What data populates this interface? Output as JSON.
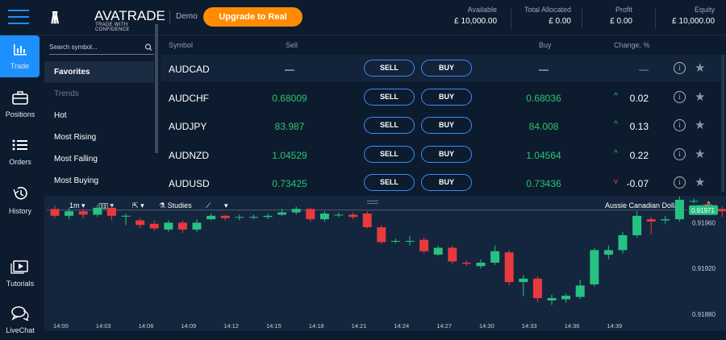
{
  "brand": {
    "name": "AVATRADE",
    "tagline": "TRADE WITH CONFIDENCE",
    "mode": "Demo"
  },
  "upgrade_label": "Upgrade to Real",
  "account": [
    {
      "label": "Available",
      "value": "£ 10,000.00"
    },
    {
      "label": "Total Allocated",
      "value": "£ 0.00"
    },
    {
      "label": "Profit",
      "value": "£ 0.00"
    },
    {
      "label": "Equity",
      "value": "£ 10,000.00"
    }
  ],
  "rail": [
    {
      "label": "Trade",
      "icon": "chart-bars-icon",
      "active": true
    },
    {
      "label": "Positions",
      "icon": "briefcase-icon"
    },
    {
      "label": "Orders",
      "icon": "list-icon"
    },
    {
      "label": "History",
      "icon": "history-icon"
    },
    {
      "label": "Tutorials",
      "icon": "video-icon"
    },
    {
      "label": "LiveChat",
      "icon": "chat-icon"
    }
  ],
  "sidebar": {
    "search_placeholder": "Search symbol...",
    "items": [
      {
        "label": "Favorites",
        "type": "fav"
      },
      {
        "label": "Trends",
        "type": "hdr"
      },
      {
        "label": "Hot"
      },
      {
        "label": "Most Rising"
      },
      {
        "label": "Most Falling"
      },
      {
        "label": "Most Buying"
      }
    ]
  },
  "table": {
    "headers": {
      "symbol": "Symbol",
      "sell": "Sell",
      "buy": "Buy",
      "change": "Change, %"
    },
    "sell_label": "SELL",
    "buy_label": "BUY",
    "rows": [
      {
        "symbol": "AUDCAD",
        "sell": "—",
        "buy": "—",
        "change": "—",
        "dir": ""
      },
      {
        "symbol": "AUDCHF",
        "sell": "0.68009",
        "buy": "0.68036",
        "change": "0.02",
        "dir": "up"
      },
      {
        "symbol": "AUDJPY",
        "sell": "83.987",
        "buy": "84.008",
        "change": "0.13",
        "dir": "up"
      },
      {
        "symbol": "AUDNZD",
        "sell": "1.04529",
        "buy": "1.04564",
        "change": "0.22",
        "dir": "up"
      },
      {
        "symbol": "AUDUSD",
        "sell": "0.73425",
        "buy": "0.73436",
        "change": "-0.07",
        "dir": "down"
      }
    ]
  },
  "chart_toolbar": {
    "interval": "1m",
    "studies": "Studies",
    "instrument": "Aussie Canadian Dollar"
  },
  "chart_data": {
    "type": "candlestick",
    "x_labels": [
      "14:00",
      "14:03",
      "14:06",
      "14:09",
      "14:12",
      "14:15",
      "14:18",
      "14:21",
      "14:24",
      "14:27",
      "14:30",
      "14:33",
      "14:36",
      "14:39"
    ],
    "y_ticks": [
      "0.91960",
      "0.91920",
      "0.91880"
    ],
    "y_range": [
      0.9187,
      0.9198
    ],
    "last_price": "0.91971",
    "colors": {
      "up": "#26c281",
      "down": "#e8393f"
    },
    "candles": [
      [
        0.91972,
        0.91966,
        0.91975,
        0.91964
      ],
      [
        0.91966,
        0.9197,
        0.91973,
        0.91963
      ],
      [
        0.9197,
        0.91967,
        0.91972,
        0.91964
      ],
      [
        0.91967,
        0.91973,
        0.91976,
        0.91965
      ],
      [
        0.91973,
        0.91966,
        0.91975,
        0.91962
      ],
      [
        0.91966,
        0.91966,
        0.91968,
        0.91958
      ],
      [
        0.91962,
        0.91958,
        0.91964,
        0.91955
      ],
      [
        0.91959,
        0.91955,
        0.91962,
        0.91953
      ],
      [
        0.91954,
        0.9196,
        0.91962,
        0.91952
      ],
      [
        0.9196,
        0.91954,
        0.91962,
        0.91951
      ],
      [
        0.91954,
        0.9196,
        0.91963,
        0.91952
      ],
      [
        0.91963,
        0.91966,
        0.91968,
        0.91962
      ],
      [
        0.91966,
        0.91964,
        0.91967,
        0.91962
      ],
      [
        0.91965,
        0.91965,
        0.91967,
        0.91962
      ],
      [
        0.91965,
        0.91965,
        0.91967,
        0.91963
      ],
      [
        0.91965,
        0.91966,
        0.91968,
        0.91963
      ],
      [
        0.91967,
        0.91969,
        0.91972,
        0.91966
      ],
      [
        0.91969,
        0.91972,
        0.91974,
        0.91967
      ],
      [
        0.91972,
        0.91963,
        0.91973,
        0.91961
      ],
      [
        0.91963,
        0.91968,
        0.9197,
        0.91961
      ],
      [
        0.91967,
        0.91967,
        0.91969,
        0.91965
      ],
      [
        0.91967,
        0.91965,
        0.91969,
        0.91963
      ],
      [
        0.91968,
        0.91956,
        0.9197,
        0.91955
      ],
      [
        0.91956,
        0.91943,
        0.91958,
        0.91941
      ],
      [
        0.91944,
        0.91944,
        0.91946,
        0.91942
      ],
      [
        0.91944,
        0.91944,
        0.91948,
        0.9194
      ],
      [
        0.91945,
        0.91935,
        0.91947,
        0.91933
      ],
      [
        0.91932,
        0.91938,
        0.9194,
        0.91931
      ],
      [
        0.91938,
        0.91926,
        0.9194,
        0.91924
      ],
      [
        0.91925,
        0.91924,
        0.91927,
        0.91922
      ],
      [
        0.91922,
        0.91925,
        0.91928,
        0.9192
      ],
      [
        0.91925,
        0.91935,
        0.9194,
        0.91923
      ],
      [
        0.91934,
        0.91908,
        0.91936,
        0.91905
      ],
      [
        0.91908,
        0.91911,
        0.91914,
        0.91896
      ],
      [
        0.91911,
        0.91894,
        0.91913,
        0.9189
      ],
      [
        0.91892,
        0.91894,
        0.91897,
        0.91888
      ],
      [
        0.91893,
        0.91896,
        0.91898,
        0.9189
      ],
      [
        0.91895,
        0.91905,
        0.9191,
        0.91893
      ],
      [
        0.91906,
        0.91936,
        0.91938,
        0.91904
      ],
      [
        0.91932,
        0.91936,
        0.9194,
        0.91928
      ],
      [
        0.91936,
        0.91949,
        0.91952,
        0.91933
      ],
      [
        0.91949,
        0.91966,
        0.9197,
        0.91947
      ],
      [
        0.91963,
        0.91961,
        0.91965,
        0.9195
      ],
      [
        0.91962,
        0.91963,
        0.91966,
        0.91959
      ],
      [
        0.91963,
        0.9198,
        0.91983,
        0.91961
      ],
      [
        0.91979,
        0.91979,
        0.91981,
        0.91977
      ],
      [
        0.91976,
        0.91972,
        0.91978,
        0.9197
      ],
      [
        0.91972,
        0.9197,
        0.91974,
        0.91965
      ],
      [
        0.91966,
        0.91971,
        0.91976,
        0.91965
      ]
    ]
  }
}
